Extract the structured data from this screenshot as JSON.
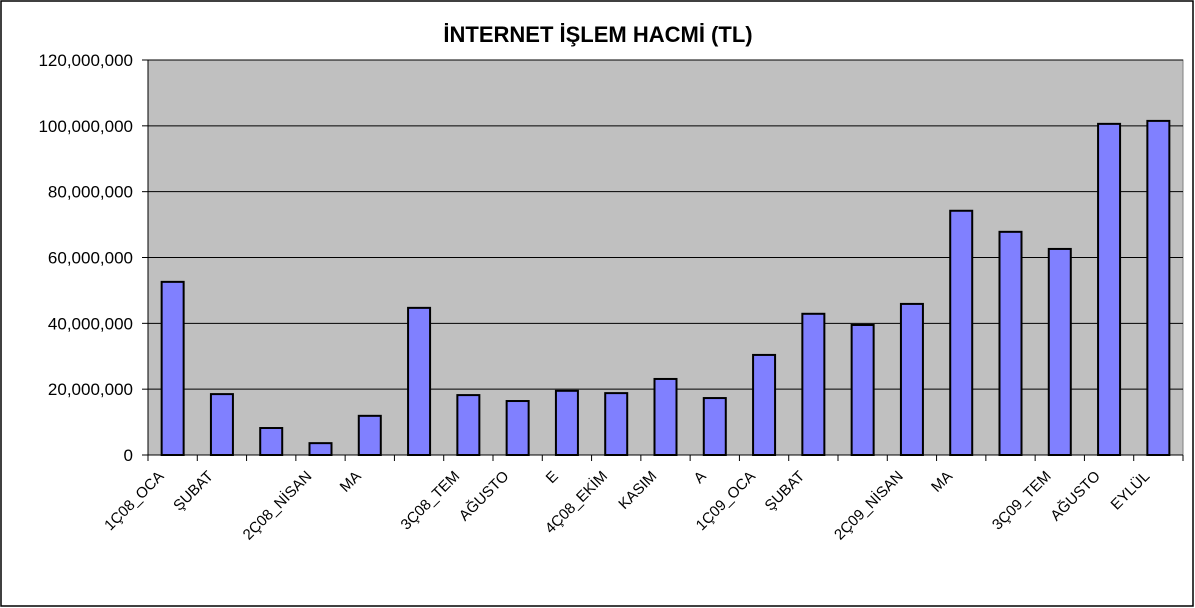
{
  "chart_data": {
    "type": "bar",
    "title": "İNTERNET İŞLEM HACMİ (TL)",
    "categories": [
      "1Ç08_OCA",
      "ŞUBAT",
      null,
      "2Ç08_NİSAN",
      "MA",
      null,
      "3Ç08_TEM",
      "AĞUSTO",
      "E",
      "4Ç08_EKİM",
      "KASIM",
      "A",
      "1Ç09_OCA",
      "ŞUBAT",
      null,
      "2Ç09_NİSAN",
      "MA",
      null,
      "3Ç09_TEM",
      "AĞUSTO",
      "EYLÜL"
    ],
    "values": [
      52600000,
      18500000,
      8200000,
      3600000,
      11900000,
      44700000,
      18200000,
      16400000,
      19500000,
      18800000,
      23100000,
      17300000,
      30400000,
      42900000,
      39500000,
      45900000,
      74200000,
      67800000,
      62600000,
      100600000,
      101500000
    ],
    "color": "#8080ff",
    "ylim": [
      0,
      120000000
    ],
    "yticks": [
      {
        "value": 0,
        "label": "0"
      },
      {
        "value": 20000000,
        "label": "20,000,000"
      },
      {
        "value": 40000000,
        "label": "40,000,000"
      },
      {
        "value": 60000000,
        "label": "60,000,000"
      },
      {
        "value": 80000000,
        "label": "80,000,000"
      },
      {
        "value": 100000000,
        "label": "100,000,000"
      },
      {
        "value": 120000000,
        "label": "120,000,000"
      }
    ],
    "grid": true
  }
}
